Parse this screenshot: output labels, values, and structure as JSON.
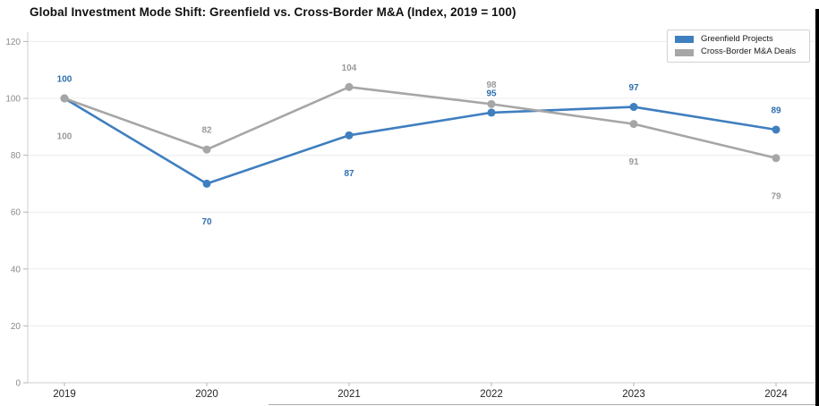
{
  "chart_data": {
    "type": "line",
    "title": "Global Investment Mode Shift: Greenfield vs. Cross-Border M&A (Index, 2019 = 100)",
    "categories": [
      "2019",
      "2020",
      "2021",
      "2022",
      "2023",
      "2024"
    ],
    "series": [
      {
        "name": "Greenfield Projects",
        "color": "#3f7fbf",
        "label_color": "#2e6fad",
        "values": [
          100,
          70,
          87,
          95,
          97,
          89
        ],
        "label_sides": [
          "above",
          "below",
          "below",
          "above",
          "above",
          "above"
        ]
      },
      {
        "name": "Cross-Border M&A Deals",
        "color": "#a6a6a6",
        "label_color": "#999999",
        "values": [
          100,
          82,
          104,
          98,
          91,
          79
        ],
        "label_sides": [
          "below",
          "above",
          "above",
          "above",
          "below",
          "below"
        ]
      }
    ],
    "xlabel": "",
    "ylabel": "",
    "yticks": [
      0,
      20,
      40,
      60,
      80,
      100,
      120
    ],
    "ylim": [
      0,
      122
    ],
    "grid": "horizontal",
    "legend_position": "upper right",
    "axis_style": {
      "grid_color": "#ececec",
      "spine_color": "#cfcfcf",
      "tick_mark_color": "#b3b3b3",
      "ytick_label_color": "#8a8a8a",
      "xtick_label_color": "#262626"
    }
  }
}
